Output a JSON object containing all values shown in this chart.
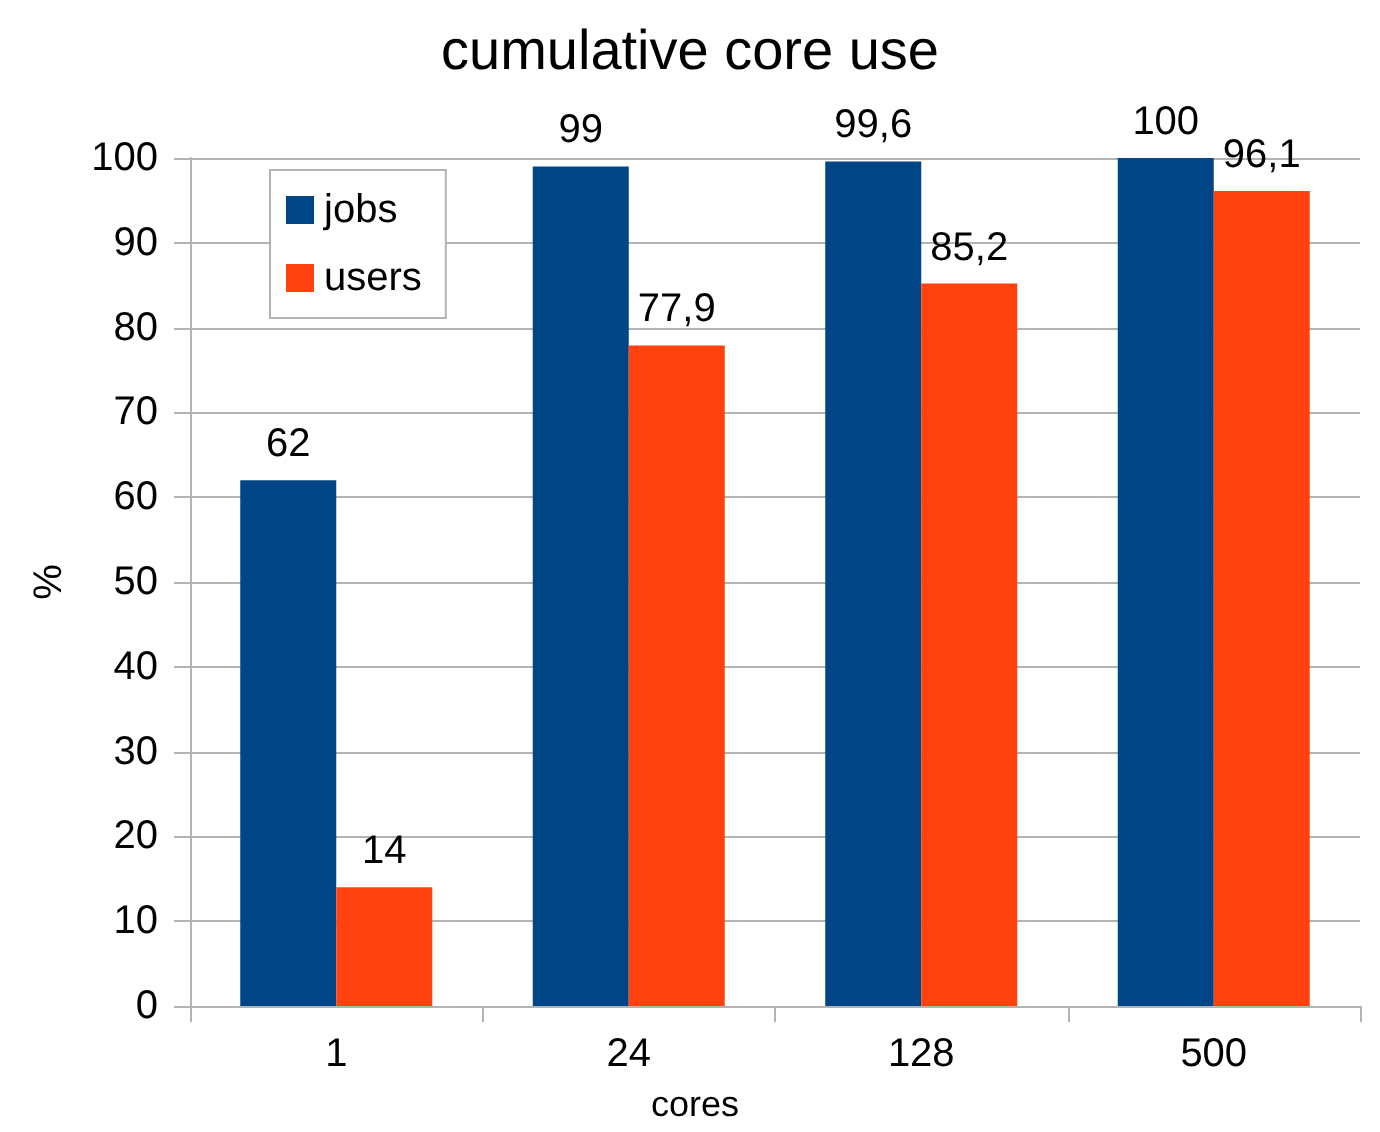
{
  "chart_data": {
    "type": "bar",
    "title": "cumulative core use",
    "xlabel": "cores",
    "ylabel": "%",
    "categories": [
      "1",
      "24",
      "128",
      "500"
    ],
    "series": [
      {
        "name": "jobs",
        "color": "#004586",
        "values": [
          62,
          99,
          99.6,
          100
        ],
        "value_labels": [
          "62",
          "99",
          "99,6",
          "100"
        ]
      },
      {
        "name": "users",
        "color": "#ff420e",
        "values": [
          14,
          77.9,
          85.2,
          96.1
        ],
        "value_labels": [
          "14",
          "77,9",
          "85,2",
          "96,1"
        ]
      }
    ],
    "ylim": [
      0,
      100
    ],
    "yticks": [
      0,
      10,
      20,
      30,
      40,
      50,
      60,
      70,
      80,
      90,
      100
    ],
    "grid": "y",
    "legend": "top left"
  }
}
